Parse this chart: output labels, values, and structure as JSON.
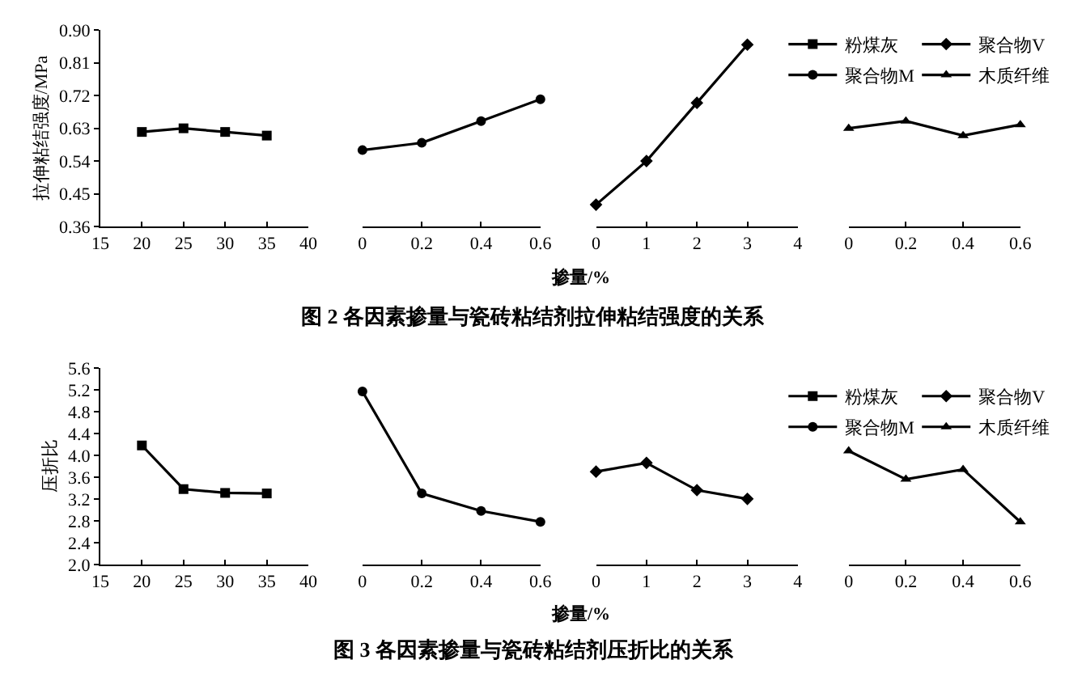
{
  "chart_data": [
    {
      "type": "line",
      "x": [
        20,
        25,
        30,
        35
      ],
      "series": [
        {
          "name": "粉煤灰",
          "color": "#000000",
          "values": [
            0.62,
            0.63,
            0.62,
            0.61
          ]
        }
      ],
      "marker": "square",
      "xlim": [
        15,
        40
      ],
      "xticks": [
        15,
        20,
        25,
        30,
        35,
        40
      ],
      "ylim": [
        0.36,
        0.9
      ],
      "yticks": [
        0.36,
        0.45,
        0.54,
        0.63,
        0.72,
        0.81,
        {
          "value": 0.9,
          "label": "0.90"
        }
      ],
      "ylabel": "拉伸粘结强度/MPa",
      "annotations": [
        "图 2 各因素掺量与瓷砖粘结剂拉伸粘结强度的关系"
      ],
      "legend": "top right"
    },
    {
      "type": "line",
      "x": [
        0,
        0.2,
        0.4,
        0.6
      ],
      "series": [
        {
          "name": "聚合物M",
          "color": "#000000",
          "values": [
            0.57,
            0.59,
            0.65,
            0.71
          ]
        }
      ],
      "marker": "circle",
      "xlim": [
        0,
        0.6
      ],
      "xticks": [
        0,
        0.2,
        0.4,
        0.6
      ],
      "ylim": [
        0.36,
        0.9
      ],
      "tick_labels": "x",
      "legend": "top right"
    },
    {
      "type": "line",
      "x": [
        0,
        1,
        2,
        3
      ],
      "series": [
        {
          "name": "聚合物V",
          "color": "#000000",
          "values": [
            0.42,
            0.54,
            0.7,
            0.86
          ]
        }
      ],
      "marker": "diamond",
      "xlim": [
        0,
        4
      ],
      "xticks": [
        0,
        1,
        2,
        3,
        4
      ],
      "ylim": [
        0.36,
        0.9
      ],
      "tick_labels": "x",
      "xlabel": "掺量/%",
      "legend": "top right"
    },
    {
      "type": "line",
      "x": [
        0,
        0.2,
        0.4,
        0.6
      ],
      "series": [
        {
          "name": "木质纤维",
          "color": "#000000",
          "values": [
            0.63,
            0.65,
            0.61,
            0.64
          ]
        }
      ],
      "marker": "triangle",
      "xlim": [
        0,
        0.6
      ],
      "xticks": [
        0,
        0.2,
        0.4,
        0.6
      ],
      "ylim": [
        0.36,
        0.9
      ],
      "tick_labels": "x",
      "legend": "top right"
    },
    {
      "type": "line",
      "x": [
        20,
        25,
        30,
        35
      ],
      "series": [
        {
          "name": "粉煤灰",
          "color": "#000000",
          "values": [
            4.18,
            3.38,
            3.31,
            3.3
          ]
        }
      ],
      "marker": "square",
      "xlim": [
        15,
        40
      ],
      "xticks": [
        15,
        20,
        25,
        30,
        35,
        40
      ],
      "ylim": [
        2,
        5.6
      ],
      "yticks": [
        {
          "value": 2,
          "label": "2.0"
        },
        2.4,
        2.8,
        3.2,
        3.6,
        {
          "value": 4,
          "label": "4.0"
        },
        4.4,
        4.8,
        5.2,
        5.6
      ],
      "ylabel": "压折比",
      "annotations": [
        "图 3 各因素掺量与瓷砖粘结剂压折比的关系"
      ],
      "legend": "top right"
    },
    {
      "type": "line",
      "x": [
        0,
        0.2,
        0.4,
        0.6
      ],
      "series": [
        {
          "name": "聚合物M",
          "color": "#000000",
          "values": [
            5.17,
            3.3,
            2.98,
            2.78
          ]
        }
      ],
      "marker": "circle",
      "xlim": [
        0,
        0.6
      ],
      "xticks": [
        0,
        0.2,
        0.4,
        0.6
      ],
      "ylim": [
        2,
        5.6
      ],
      "tick_labels": "x",
      "legend": "top right"
    },
    {
      "type": "line",
      "x": [
        0,
        1,
        2,
        3
      ],
      "series": [
        {
          "name": "聚合物V",
          "color": "#000000",
          "values": [
            3.7,
            3.86,
            3.36,
            3.2
          ]
        }
      ],
      "marker": "diamond",
      "xlim": [
        0,
        4
      ],
      "xticks": [
        0,
        1,
        2,
        3,
        4
      ],
      "ylim": [
        2,
        5.6
      ],
      "tick_labels": "x",
      "xlabel": "掺量/%",
      "legend": "top right"
    },
    {
      "type": "line",
      "x": [
        0,
        0.2,
        0.4,
        0.6
      ],
      "series": [
        {
          "name": "木质纤维",
          "color": "#000000",
          "values": [
            4.08,
            3.56,
            3.74,
            2.78
          ]
        }
      ],
      "marker": "triangle",
      "xlim": [
        0,
        0.6
      ],
      "xticks": [
        0,
        0.2,
        0.4,
        0.6
      ],
      "ylim": [
        2,
        5.6
      ],
      "tick_labels": "x",
      "legend": "top right"
    }
  ]
}
